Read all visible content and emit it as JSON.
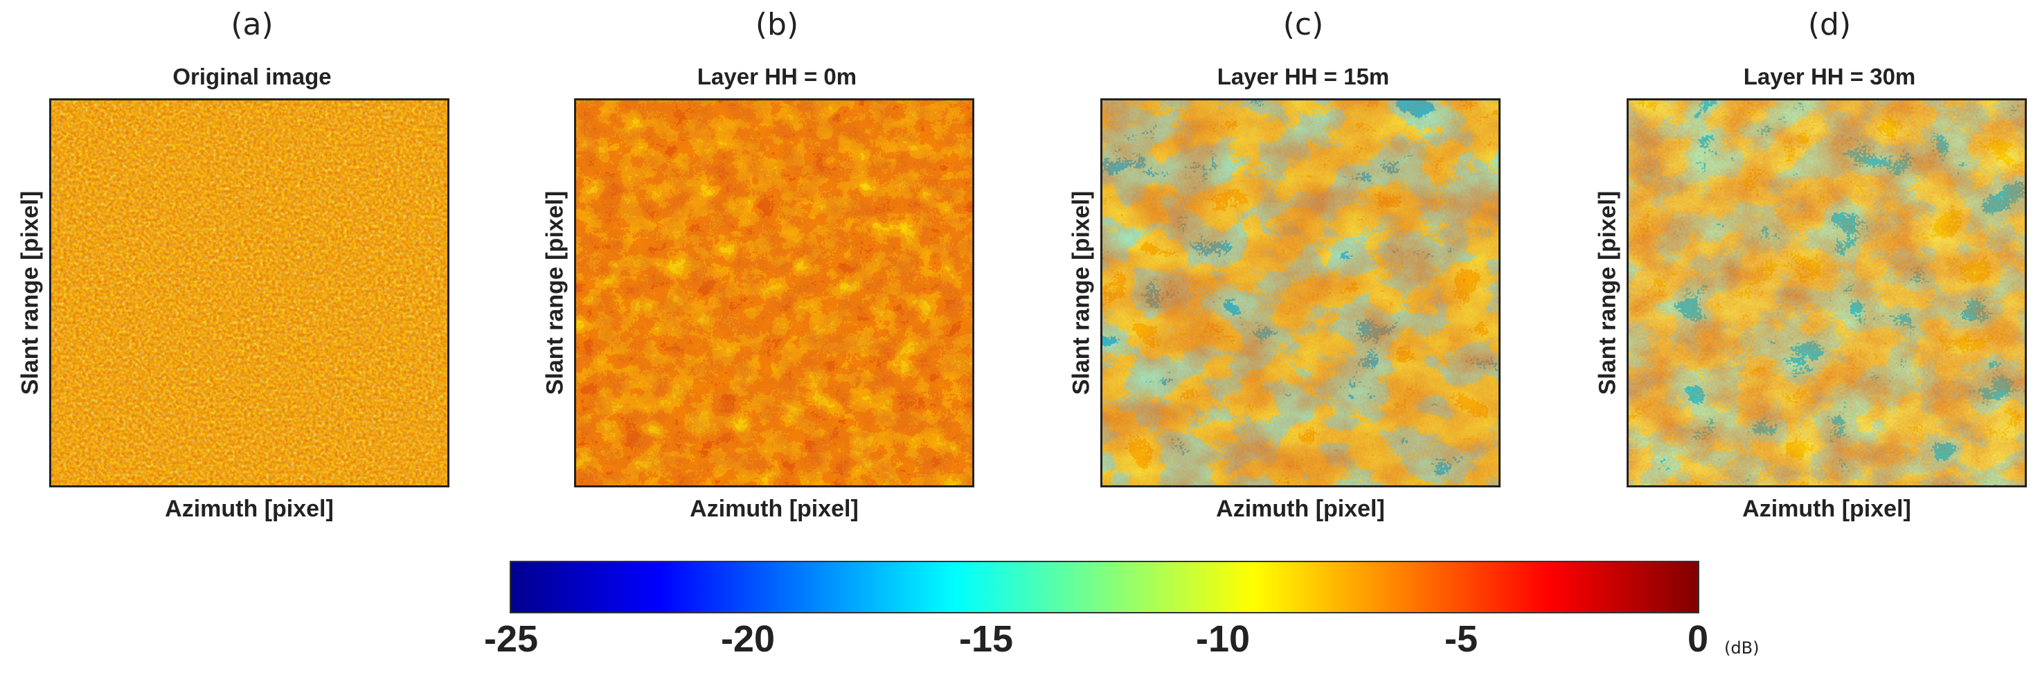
{
  "panels": [
    {
      "letter": "(a)",
      "title": "Original image",
      "xlabel": "Azimuth [pixel]",
      "ylabel": "Slant range [pixel]",
      "texture": "mixed-speckle"
    },
    {
      "letter": "(b)",
      "title": "Layer HH = 0m",
      "xlabel": "Azimuth [pixel]",
      "ylabel": "Slant range [pixel]",
      "texture": "mostly-high"
    },
    {
      "letter": "(c)",
      "title": "Layer HH = 15m",
      "xlabel": "Azimuth [pixel]",
      "ylabel": "Slant range [pixel]",
      "texture": "high-with-low-patches"
    },
    {
      "letter": "(d)",
      "title": "Layer HH = 30m",
      "xlabel": "Azimuth [pixel]",
      "ylabel": "Slant range [pixel]",
      "texture": "mixed-with-low-patches"
    }
  ],
  "colorbar": {
    "ticks": [
      "-25",
      "-20",
      "-15",
      "-10",
      "-5",
      "0"
    ],
    "unit": "(dB)",
    "min": -25,
    "max": 0,
    "colormap": [
      "#00008f",
      "#0000ff",
      "#0080ff",
      "#00ffff",
      "#80ff80",
      "#ffff00",
      "#ff8000",
      "#ff0000",
      "#800000"
    ]
  }
}
